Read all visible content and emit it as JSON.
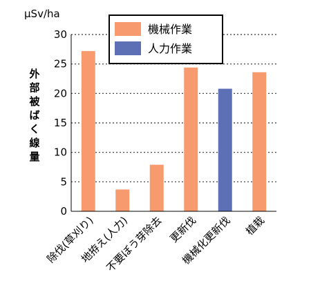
{
  "chart_data": {
    "type": "bar",
    "unit_label": "μSv/ha",
    "ylabel": "外部被ばく線量",
    "ylim": [
      0,
      30
    ],
    "yticks": [
      0,
      5,
      10,
      15,
      20,
      25,
      30
    ],
    "grid": "dotted horizontal",
    "categories": [
      "除伐(草刈り)",
      "地拵え(人力)",
      "不要ぼう芽除去",
      "更新伐",
      "機械化更新伐",
      "植栽"
    ],
    "values": [
      27.2,
      3.7,
      7.9,
      24.4,
      20.8,
      23.6
    ],
    "series_of_bar": [
      "機械作業",
      "機械作業",
      "機械作業",
      "機械作業",
      "人力作業",
      "機械作業"
    ],
    "legend": [
      {
        "name": "機械作業",
        "color": "#f79a6e"
      },
      {
        "name": "人力作業",
        "color": "#5e70b5"
      }
    ],
    "legend_position": "top"
  }
}
